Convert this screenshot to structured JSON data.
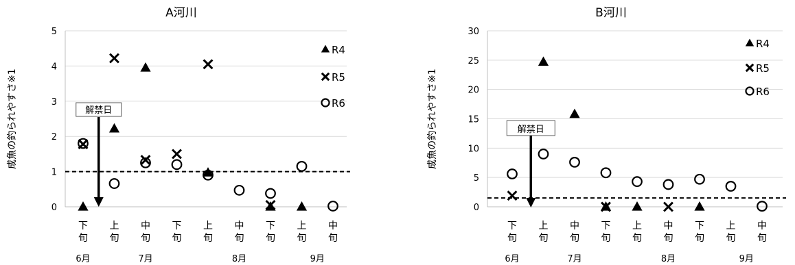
{
  "chart_data": [
    {
      "type": "scatter",
      "title": "A河川",
      "ylabel": "成魚の釣られやすさ※1",
      "ylim": [
        0,
        5
      ],
      "yticks": [
        0,
        1,
        2,
        3,
        4,
        5
      ],
      "grid": true,
      "categories": [
        "下\n旬",
        "上\n旬",
        "中\n旬",
        "下\n旬",
        "上\n旬",
        "中\n旬",
        "下\n旬",
        "上\n旬",
        "中\n旬"
      ],
      "months": [
        {
          "label": "6月",
          "at": 0
        },
        {
          "label": "7月",
          "at": 2
        },
        {
          "label": "8月",
          "at": 5
        },
        {
          "label": "9月",
          "at": 7.5
        }
      ],
      "reference_line": 1,
      "annotation": {
        "label": "解禁日",
        "at": 0.5
      },
      "legend_position": "right",
      "series": [
        {
          "name": "R4",
          "marker": "triangle",
          "points": [
            [
              0,
              0
            ],
            [
              1,
              2.22
            ],
            [
              2,
              3.95
            ],
            [
              4,
              0.97
            ],
            [
              6,
              0
            ],
            [
              7,
              0
            ]
          ]
        },
        {
          "name": "R5",
          "marker": "x",
          "points": [
            [
              0,
              1.78
            ],
            [
              1,
              4.22
            ],
            [
              2,
              1.33
            ],
            [
              3,
              1.5
            ],
            [
              4,
              4.05
            ],
            [
              6,
              0.05
            ]
          ]
        },
        {
          "name": "R6",
          "marker": "circle",
          "points": [
            [
              0,
              1.8
            ],
            [
              1,
              0.66
            ],
            [
              2,
              1.25
            ],
            [
              3,
              1.2
            ],
            [
              4,
              0.9
            ],
            [
              5,
              0.47
            ],
            [
              6,
              0.38
            ],
            [
              7,
              1.15
            ],
            [
              8,
              0.02
            ]
          ]
        }
      ]
    },
    {
      "type": "scatter",
      "title": "B河川",
      "ylabel": "成魚の釣られやすさ※1",
      "ylim": [
        0,
        30
      ],
      "yticks": [
        0,
        5,
        10,
        15,
        20,
        25,
        30
      ],
      "grid": true,
      "categories": [
        "下\n旬",
        "上\n旬",
        "中\n旬",
        "下\n旬",
        "上\n旬",
        "中\n旬",
        "下\n旬",
        "上\n旬",
        "中\n旬"
      ],
      "months": [
        {
          "label": "6月",
          "at": 0
        },
        {
          "label": "7月",
          "at": 2
        },
        {
          "label": "8月",
          "at": 5
        },
        {
          "label": "9月",
          "at": 7.5
        }
      ],
      "reference_line": 1.5,
      "annotation": {
        "label": "解禁日",
        "at": 0.6
      },
      "legend_position": "right",
      "series": [
        {
          "name": "R4",
          "marker": "triangle",
          "points": [
            [
              1,
              24.7
            ],
            [
              2,
              15.8
            ],
            [
              3,
              0
            ],
            [
              4,
              0
            ],
            [
              6,
              0
            ]
          ]
        },
        {
          "name": "R5",
          "marker": "x",
          "points": [
            [
              0,
              1.9
            ],
            [
              3,
              0
            ],
            [
              5,
              0
            ]
          ]
        },
        {
          "name": "R6",
          "marker": "circle",
          "points": [
            [
              0,
              5.6
            ],
            [
              1,
              9.0
            ],
            [
              2,
              7.6
            ],
            [
              3,
              5.8
            ],
            [
              4,
              4.3
            ],
            [
              5,
              3.8
            ],
            [
              6,
              4.7
            ],
            [
              7,
              3.5
            ],
            [
              8,
              0.1
            ]
          ]
        }
      ]
    }
  ]
}
